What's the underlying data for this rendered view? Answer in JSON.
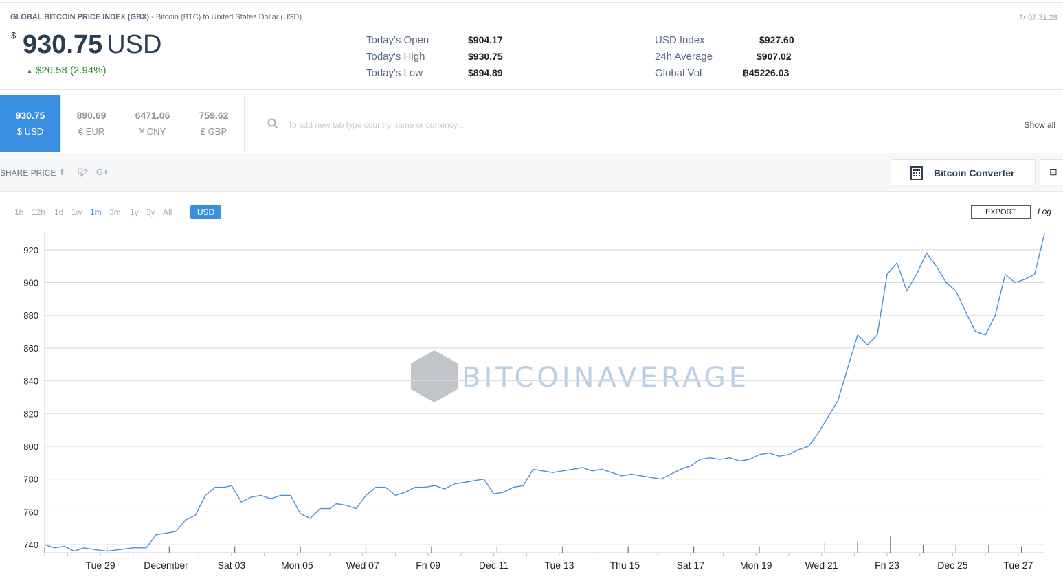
{
  "header": {
    "title_bold": "GLOBAL BITCOIN PRICE INDEX (GBX)",
    "title_rest": " - Bitcoin (BTC) to United States Dollar (USD)",
    "timestamp": "07.31.28"
  },
  "price": {
    "symbol": "$",
    "value": "930.75",
    "unit": "USD",
    "change": "$26.58 (2.94%)"
  },
  "stats": [
    {
      "label": "Today's Open",
      "value": "$904.17"
    },
    {
      "label": "Today's High",
      "value": "$930.75"
    },
    {
      "label": "Today's Low",
      "value": "$894.89"
    },
    {
      "label": "USD Index",
      "value": "$927.60"
    },
    {
      "label": "24h Average",
      "value": "$907.02"
    },
    {
      "label": "Global Vol",
      "value": "฿45226.03"
    }
  ],
  "currency_tabs": [
    {
      "value": "930.75",
      "code": "$ USD",
      "active": true
    },
    {
      "value": "890.69",
      "code": "€ EUR",
      "active": false
    },
    {
      "value": "6471.06",
      "code": "¥ CNY",
      "active": false
    },
    {
      "value": "759.62",
      "code": "£ GBP",
      "active": false
    }
  ],
  "search": {
    "placeholder": "To add new tab type country name or currency..."
  },
  "show_all": "Show all",
  "share": {
    "label": "SHARE PRICE",
    "icons": [
      "facebook-icon",
      "twitter-icon",
      "google-plus-icon"
    ]
  },
  "converter": {
    "label": "Bitcoin Converter"
  },
  "ranges": [
    "1h",
    "12h",
    "1d",
    "1w",
    "1m",
    "3m",
    "1y",
    "3y",
    "All"
  ],
  "active_range": "1m",
  "currency_pill": "USD",
  "export_label": "EXPORT",
  "log_label": "Log",
  "colors": {
    "accent": "#3b8fe0",
    "up": "#2e8b2e",
    "line": "#4a90d9"
  },
  "chart_data": {
    "type": "line",
    "watermark": "BITCOINAVERAGE",
    "ylim": [
      735,
      930
    ],
    "yticks": [
      740,
      760,
      780,
      800,
      820,
      840,
      860,
      880,
      900,
      920
    ],
    "xticks": [
      "Tue 29",
      "December",
      "Sat 03",
      "Mon 05",
      "Wed 07",
      "Fri 09",
      "Dec 11",
      "Tue 13",
      "Thu 15",
      "Sat 17",
      "Mon 19",
      "Wed 21",
      "Fri 23",
      "Dec 25",
      "Tue 27"
    ],
    "xlim_days": [
      27.3,
      57.8
    ],
    "series": [
      {
        "x": [
          27.3,
          27.6,
          27.9,
          28.2,
          28.5,
          28.8,
          29.2,
          29.6,
          30.0,
          30.4,
          30.7,
          31.0,
          31.3,
          31.6,
          31.9,
          32.2,
          32.5,
          32.8,
          33.0,
          33.3,
          33.6,
          33.9,
          34.2,
          34.5,
          34.8,
          35.1,
          35.4,
          35.7,
          36.0,
          36.2,
          36.5,
          36.8,
          37.1,
          37.4,
          37.7,
          38.0,
          38.3,
          38.6,
          38.9,
          39.2,
          39.5,
          39.8,
          40.1,
          40.4,
          40.7,
          41.0,
          41.3,
          41.6,
          41.9,
          42.2,
          42.5,
          42.8,
          43.1,
          43.4,
          43.7,
          44.0,
          44.3,
          44.6,
          44.9,
          45.2,
          45.5,
          45.8,
          46.1,
          46.4,
          46.7,
          47.0,
          47.3,
          47.6,
          47.9,
          48.2,
          48.5,
          48.8,
          49.1,
          49.4,
          49.7,
          50.0,
          50.3,
          50.6,
          50.9,
          51.2,
          51.5,
          51.8,
          52.1,
          52.4,
          52.7,
          53.0,
          53.3,
          53.6,
          53.9,
          54.2,
          54.5,
          54.8,
          55.1,
          55.4,
          55.7,
          56.0,
          56.3,
          56.6,
          56.9,
          57.2,
          57.5,
          57.8
        ],
        "y": [
          740,
          738,
          739,
          736,
          738,
          737,
          736,
          737,
          738,
          738,
          746,
          747,
          748,
          755,
          758,
          770,
          775,
          775,
          776,
          766,
          769,
          770,
          768,
          770,
          770,
          759,
          756,
          762,
          762,
          765,
          764,
          762,
          770,
          775,
          775,
          770,
          772,
          775,
          775,
          776,
          774,
          777,
          778,
          779,
          780,
          771,
          772,
          775,
          776,
          786,
          785,
          784,
          785,
          786,
          787,
          785,
          786,
          784,
          782,
          783,
          782,
          781,
          780,
          783,
          786,
          788,
          792,
          793,
          792,
          793,
          791,
          792,
          795,
          796,
          794,
          795,
          798,
          800,
          808,
          818,
          828,
          848,
          868,
          862,
          868,
          905,
          912,
          895,
          905,
          918,
          910,
          900,
          895,
          882,
          870,
          868,
          880,
          905,
          900,
          902,
          905,
          930
        ]
      }
    ],
    "volume": [
      {
        "x": 27.3,
        "v": 0.3
      },
      {
        "x": 29.2,
        "v": 0.4
      },
      {
        "x": 31.1,
        "v": 0.4
      },
      {
        "x": 33.1,
        "v": 0.4
      },
      {
        "x": 35.1,
        "v": 0.4
      },
      {
        "x": 37.1,
        "v": 0.4
      },
      {
        "x": 39.1,
        "v": 0.4
      },
      {
        "x": 41.1,
        "v": 0.4
      },
      {
        "x": 43.1,
        "v": 0.4
      },
      {
        "x": 45.1,
        "v": 0.4
      },
      {
        "x": 47.1,
        "v": 0.4
      },
      {
        "x": 49.1,
        "v": 0.4
      },
      {
        "x": 51.1,
        "v": 0.6
      },
      {
        "x": 52.1,
        "v": 0.7
      },
      {
        "x": 53.1,
        "v": 1.0
      },
      {
        "x": 54.1,
        "v": 0.5
      },
      {
        "x": 55.1,
        "v": 0.5
      },
      {
        "x": 56.1,
        "v": 0.5
      },
      {
        "x": 57.1,
        "v": 0.4
      }
    ]
  }
}
